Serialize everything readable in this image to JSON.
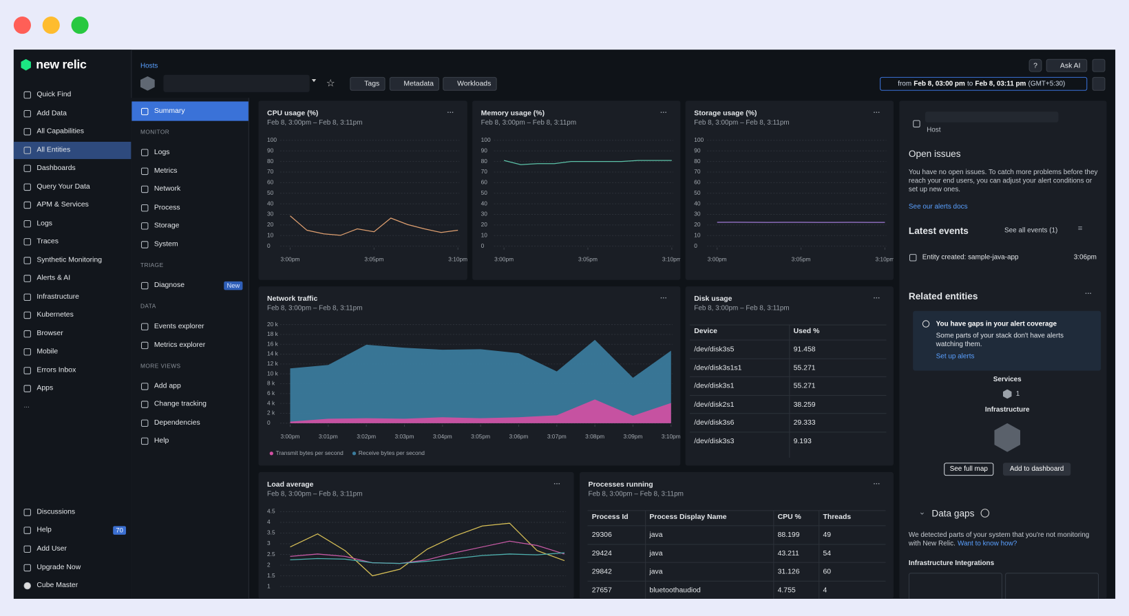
{
  "header": {
    "breadcrumb": "Hosts",
    "tags": "Tags",
    "metadata": "Metadata",
    "workloads": "Workloads",
    "ask_ai": "Ask AI",
    "time_from": "from",
    "time_start": "Feb 8, 03:00 pm",
    "time_to": "to",
    "time_end": "Feb 8, 03:11 pm",
    "time_zone": "(GMT+5:30)"
  },
  "sidebar": {
    "logo": "new relic",
    "items": [
      "Quick Find",
      "Add Data",
      "All Capabilities",
      "All Entities",
      "Dashboards",
      "Query Your Data",
      "APM & Services",
      "Logs",
      "Traces",
      "Synthetic Monitoring",
      "Alerts & AI",
      "Infrastructure",
      "Kubernetes",
      "Browser",
      "Mobile",
      "Errors Inbox",
      "Apps"
    ],
    "active": 3,
    "more": "...",
    "bottom_items": [
      "Discussions",
      "Help",
      "Add User",
      "Upgrade Now",
      "Cube Master"
    ],
    "help_badge": 70
  },
  "subnav": {
    "summary": "Summary",
    "sections": [
      {
        "title": "MONITOR",
        "items": [
          "Logs",
          "Metrics",
          "Network",
          "Process",
          "Storage",
          "System"
        ]
      },
      {
        "title": "TRIAGE",
        "items": [
          "Diagnose"
        ]
      },
      {
        "title": "DATA",
        "items": [
          "Events explorer",
          "Metrics explorer"
        ]
      },
      {
        "title": "MORE VIEWS",
        "items": [
          "Add app",
          "Change tracking",
          "Dependencies",
          "Help"
        ]
      }
    ],
    "new_badge": "New"
  },
  "cards": {
    "cpu": {
      "type": "line",
      "title": "CPU usage (%)",
      "subtitle": "Feb 8, 3:00pm – Feb 8, 3:11pm",
      "x": [
        0,
        1,
        2,
        3,
        4,
        5,
        6,
        7,
        8,
        9,
        10
      ],
      "xlim": [
        0,
        10
      ],
      "xticks": [
        {
          "value": 0,
          "label": "3:00pm"
        },
        {
          "value": 5,
          "label": "3:05pm"
        },
        {
          "value": 10,
          "label": "3:10pm"
        }
      ],
      "ylim": [
        0,
        100
      ],
      "yticks": [
        0,
        10,
        20,
        30,
        40,
        50,
        60,
        70,
        80,
        90,
        100
      ],
      "grid": true,
      "series": [
        {
          "color": "#e0a070",
          "values": [
            28.6,
            15,
            11.6,
            10.2,
            16.3,
            13.6,
            26.5,
            20.4,
            16.3,
            12.9,
            15
          ]
        }
      ]
    },
    "memory": {
      "type": "line",
      "title": "Memory usage (%)",
      "subtitle": "Feb 8, 3:00pm – Feb 8, 3:11pm",
      "x": [
        0,
        1,
        2,
        3,
        4,
        5,
        6,
        7,
        8,
        9,
        10
      ],
      "xlim": [
        0,
        10
      ],
      "xticks": [
        {
          "value": 0,
          "label": "3:00pm"
        },
        {
          "value": 5,
          "label": "3:05pm"
        },
        {
          "value": 10,
          "label": "3:10pm"
        }
      ],
      "ylim": [
        0,
        100
      ],
      "yticks": [
        0,
        10,
        20,
        30,
        40,
        50,
        60,
        70,
        80,
        90,
        100
      ],
      "grid": true,
      "series": [
        {
          "color": "#5cc2a8",
          "values": [
            81,
            77,
            78,
            78,
            80,
            80,
            80,
            80,
            81,
            81,
            81
          ]
        }
      ]
    },
    "storage": {
      "type": "line",
      "title": "Storage usage (%)",
      "subtitle": "Feb 8, 3:00pm – Feb 8, 3:11pm",
      "x": [
        0,
        1,
        2,
        3,
        4,
        5,
        6,
        7,
        8,
        9,
        10
      ],
      "xlim": [
        0,
        10
      ],
      "xticks": [
        {
          "value": 0,
          "label": "3:00pm"
        },
        {
          "value": 5,
          "label": "3:05pm"
        },
        {
          "value": 10,
          "label": "3:10pm"
        }
      ],
      "ylim": [
        0,
        100
      ],
      "yticks": [
        0,
        10,
        20,
        30,
        40,
        50,
        60,
        70,
        80,
        90,
        100
      ],
      "grid": true,
      "series": [
        {
          "color": "#a07ad6",
          "values": [
            22.5,
            22.6,
            22.5,
            22.4,
            22.5,
            22.5,
            22.4,
            22.4,
            22.5,
            22.4,
            22.4
          ]
        }
      ]
    },
    "network": {
      "type": "area",
      "title": "Network traffic",
      "subtitle": "Feb 8, 3:00pm – Feb 8, 3:11pm",
      "x": [
        0,
        1,
        2,
        3,
        4,
        5,
        6,
        7,
        8,
        9,
        10
      ],
      "xlim": [
        0,
        10
      ],
      "xticks": [
        {
          "value": 0,
          "label": "3:00pm"
        },
        {
          "value": 1,
          "label": "3:01pm"
        },
        {
          "value": 2,
          "label": "3:02pm"
        },
        {
          "value": 3,
          "label": "3:03pm"
        },
        {
          "value": 4,
          "label": "3:04pm"
        },
        {
          "value": 5,
          "label": "3:05pm"
        },
        {
          "value": 6,
          "label": "3:06pm"
        },
        {
          "value": 7,
          "label": "3:07pm"
        },
        {
          "value": 8,
          "label": "3:08pm"
        },
        {
          "value": 9,
          "label": "3:09pm"
        },
        {
          "value": 10,
          "label": "3:10pm"
        }
      ],
      "ylim": [
        0,
        20000
      ],
      "yticks": [
        0,
        {
          "value": 2000,
          "label": "2 k"
        },
        {
          "value": 4000,
          "label": "4 k"
        },
        {
          "value": 6000,
          "label": "6 k"
        },
        {
          "value": 8000,
          "label": "8 k"
        },
        {
          "value": 10000,
          "label": "10 k"
        },
        {
          "value": 12000,
          "label": "12 k"
        },
        {
          "value": 14000,
          "label": "14 k"
        },
        {
          "value": 16000,
          "label": "16 k"
        },
        {
          "value": 18000,
          "label": "18 k"
        },
        {
          "value": 20000,
          "label": "20 k"
        }
      ],
      "grid": true,
      "series": [
        {
          "name": "Receive bytes per second",
          "color": "#3b7d9e",
          "values": [
            11100,
            11800,
            15900,
            15300,
            14900,
            15000,
            14200,
            10500,
            16900,
            9200,
            14700
          ]
        },
        {
          "name": "Transmit bytes per second",
          "color": "#d24fa2",
          "values": [
            300,
            900,
            1000,
            900,
            1200,
            1000,
            1200,
            1600,
            4800,
            1500,
            4100
          ]
        }
      ],
      "legend_order": [
        1,
        0
      ]
    },
    "disk": {
      "title": "Disk usage",
      "subtitle": "Feb 8, 3:00pm – Feb 8, 3:11pm",
      "columns": [
        "Device",
        "Used %"
      ],
      "rows": [
        [
          "/dev/disk3s5",
          91.458
        ],
        [
          "/dev/disk3s1s1",
          55.271
        ],
        [
          "/dev/disk3s1",
          55.271
        ],
        [
          "/dev/disk2s1",
          38.259
        ],
        [
          "/dev/disk3s6",
          29.333
        ],
        [
          "/dev/disk3s3",
          9.193
        ]
      ]
    },
    "load": {
      "type": "line",
      "title": "Load average",
      "subtitle": "Feb 8, 3:00pm – Feb 8, 3:11pm",
      "ylim": [
        1,
        4.5
      ],
      "yticks": [
        1,
        1.5,
        2,
        2.5,
        3,
        3.5,
        4,
        4.5
      ],
      "grid": true,
      "series": [
        {
          "color": "#d8c056",
          "values": [
            2.85,
            3.46,
            2.68,
            1.5,
            1.81,
            2.75,
            3.36,
            3.83,
            3.96,
            2.68,
            2.21
          ]
        },
        {
          "color": "#c85aa6",
          "values": [
            2.41,
            2.52,
            2.41,
            2.11,
            2.08,
            2.25,
            2.58,
            2.85,
            3.12,
            2.92,
            2.52
          ]
        },
        {
          "color": "#4fb2b0",
          "values": [
            2.25,
            2.31,
            2.28,
            2.11,
            2.08,
            2.18,
            2.31,
            2.45,
            2.52,
            2.48,
            2.58
          ]
        }
      ]
    },
    "process": {
      "title": "Processes running",
      "subtitle": "Feb 8, 3:00pm – Feb 8, 3:11pm",
      "columns": [
        "Process Id",
        "Process Display Name",
        "CPU %",
        "Threads"
      ],
      "rows": [
        [
          29306,
          "java",
          88.199,
          49
        ],
        [
          29424,
          "java",
          43.211,
          54
        ],
        [
          29842,
          "java",
          31.126,
          60
        ],
        [
          27657,
          "bluetoothaudiod",
          4.755,
          4
        ]
      ]
    }
  },
  "right_panel": {
    "entity_type": "Host",
    "open_issues_title": "Open issues",
    "open_issues_text": "You have no open issues. To catch more problems before they reach your end users, you can adjust your alert conditions or set up new ones.",
    "alerts_docs_link": "See our alerts docs",
    "latest_events_title": "Latest events",
    "see_all_events": "See all events (1)",
    "event_text": "Entity created: sample-java-app",
    "event_time": "3:06pm",
    "related_title": "Related entities",
    "gap_title": "You have gaps in your alert coverage",
    "gap_text": "Some parts of your stack don't have alerts watching them.",
    "gap_link": "Set up alerts",
    "services_label": "Services",
    "services_count": 1,
    "infrastructure_label": "Infrastructure",
    "see_full_map": "See full map",
    "add_to_dashboard": "Add to dashboard",
    "data_gaps_title": "Data gaps",
    "data_gaps_text": "We detected parts of your system that you're not monitoring with New Relic.",
    "data_gaps_link": "Want to know how?",
    "integrations_title": "Infrastructure Integrations"
  }
}
